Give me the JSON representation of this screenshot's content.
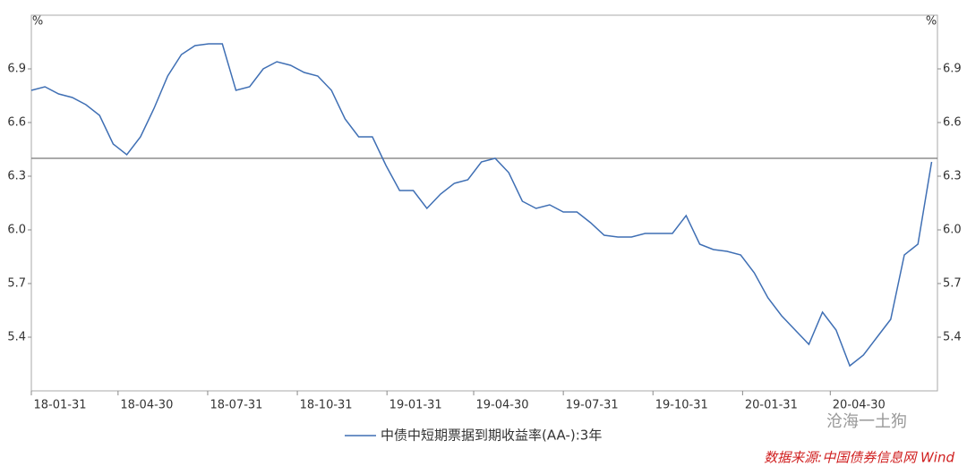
{
  "chart_data": {
    "type": "line",
    "y_label": "%",
    "x": [
      "18-01-31",
      "18-02-14",
      "18-02-28",
      "18-03-14",
      "18-03-28",
      "18-04-11",
      "18-04-25",
      "18-05-09",
      "18-05-23",
      "18-06-06",
      "18-06-20",
      "18-07-04",
      "18-07-18",
      "18-08-01",
      "18-08-15",
      "18-08-29",
      "18-09-12",
      "18-09-26",
      "18-10-10",
      "18-10-24",
      "18-11-07",
      "18-11-21",
      "18-12-05",
      "18-12-19",
      "19-01-02",
      "19-01-16",
      "19-01-30",
      "19-02-13",
      "19-02-27",
      "19-03-13",
      "19-03-27",
      "19-04-10",
      "19-04-24",
      "19-05-08",
      "19-05-22",
      "19-06-05",
      "19-06-19",
      "19-07-03",
      "19-07-17",
      "19-07-31",
      "19-08-14",
      "19-08-28",
      "19-09-11",
      "19-09-25",
      "19-10-09",
      "19-10-23",
      "19-11-06",
      "19-11-20",
      "19-12-04",
      "19-12-18",
      "20-01-01",
      "20-01-15",
      "20-01-29",
      "20-02-12",
      "20-02-26",
      "20-03-11",
      "20-03-25",
      "20-04-08",
      "20-04-22",
      "20-05-06",
      "20-05-20",
      "20-06-03",
      "20-06-17",
      "20-07-01",
      "20-07-15",
      "20-07-29",
      "20-08-12"
    ],
    "series": [
      {
        "name": "中债中短期票据到期收益率(AA-):3年",
        "color": "#3f6fb4",
        "values": [
          6.78,
          6.8,
          6.76,
          6.74,
          6.7,
          6.64,
          6.48,
          6.42,
          6.52,
          6.68,
          6.86,
          6.98,
          7.03,
          7.04,
          7.04,
          6.78,
          6.8,
          6.9,
          6.94,
          6.92,
          6.88,
          6.86,
          6.78,
          6.62,
          6.52,
          6.52,
          6.36,
          6.22,
          6.22,
          6.12,
          6.2,
          6.26,
          6.28,
          6.38,
          6.4,
          6.32,
          6.16,
          6.12,
          6.14,
          6.1,
          6.1,
          6.04,
          5.97,
          5.96,
          5.96,
          5.98,
          5.98,
          5.98,
          6.08,
          5.92,
          5.89,
          5.88,
          5.86,
          5.76,
          5.62,
          5.52,
          5.44,
          5.36,
          5.54,
          5.44,
          5.24,
          5.3,
          5.4,
          5.5,
          5.86,
          5.92,
          6.38
        ]
      }
    ],
    "hline": 6.4,
    "xlim": [
      "18-01-31",
      "20-08-18"
    ],
    "xticks": [
      "18-01-31",
      "18-04-30",
      "18-07-31",
      "18-10-31",
      "19-01-31",
      "19-04-30",
      "19-07-31",
      "19-10-31",
      "20-01-31",
      "20-04-30"
    ],
    "ylim": [
      5.1,
      7.2
    ],
    "yticks": [
      {
        "value": 5.4,
        "label": "5.4"
      },
      {
        "value": 5.7,
        "label": "5.7"
      },
      {
        "value": 6,
        "label": "6.0"
      },
      {
        "value": 6.3,
        "label": "6.3"
      },
      {
        "value": 6.6,
        "label": "6.6"
      },
      {
        "value": 6.9,
        "label": "6.9"
      }
    ],
    "watermark": "沧海一土狗",
    "source": "数据来源:中国债券信息网 Wind"
  }
}
